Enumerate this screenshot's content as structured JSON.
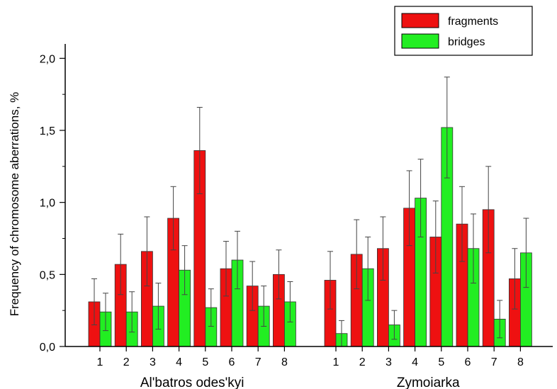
{
  "chart_data": {
    "type": "bar",
    "ylabel": "Frequency of chromosome aberrations, %",
    "ylim": [
      0,
      2.1
    ],
    "yticks": [
      "0,0",
      "0,5",
      "1,0",
      "1,5",
      "2,0"
    ],
    "ytick_values": [
      0,
      0.5,
      1.0,
      1.5,
      2.0
    ],
    "legend_position": "top-right",
    "series_colors": {
      "fragments": "#ee1111",
      "bridges": "#22ee22"
    },
    "error_bars": true,
    "groups": [
      {
        "label": "Al'batros odes'kyi",
        "categories": [
          "1",
          "2",
          "3",
          "4",
          "5",
          "6",
          "7",
          "8"
        ],
        "series": [
          {
            "name": "fragments",
            "values": [
              0.31,
              0.57,
              0.66,
              0.89,
              1.36,
              0.54,
              0.42,
              0.5
            ],
            "errors": [
              0.16,
              0.21,
              0.24,
              0.22,
              0.3,
              0.19,
              0.17,
              0.17
            ]
          },
          {
            "name": "bridges",
            "values": [
              0.24,
              0.24,
              0.28,
              0.53,
              0.27,
              0.6,
              0.28,
              0.31
            ],
            "errors": [
              0.13,
              0.14,
              0.16,
              0.17,
              0.13,
              0.2,
              0.14,
              0.14
            ]
          }
        ]
      },
      {
        "label": "Zymoiarka",
        "categories": [
          "1",
          "2",
          "3",
          "4",
          "5",
          "6",
          "7",
          "8"
        ],
        "series": [
          {
            "name": "fragments",
            "values": [
              0.46,
              0.64,
              0.68,
              0.96,
              0.76,
              0.85,
              0.95,
              0.47
            ],
            "errors": [
              0.2,
              0.24,
              0.22,
              0.26,
              0.25,
              0.26,
              0.3,
              0.21
            ]
          },
          {
            "name": "bridges",
            "values": [
              0.09,
              0.54,
              0.15,
              1.03,
              1.52,
              0.68,
              0.19,
              0.65
            ],
            "errors": [
              0.09,
              0.22,
              0.1,
              0.27,
              0.35,
              0.24,
              0.13,
              0.24
            ]
          }
        ]
      }
    ]
  }
}
